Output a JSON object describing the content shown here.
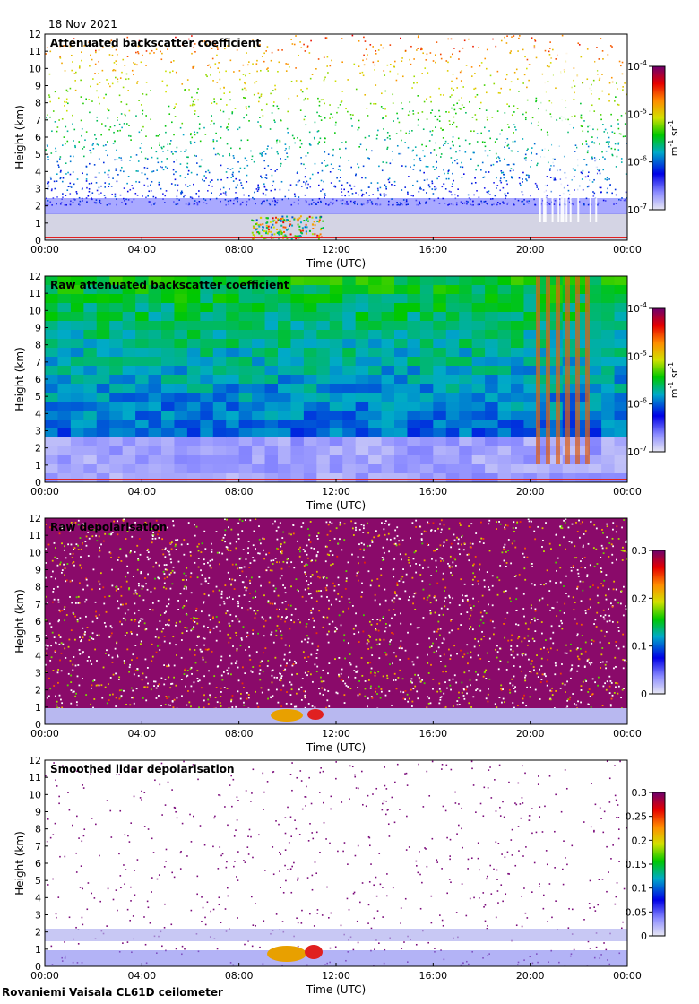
{
  "date": "18 Nov 2021",
  "station": "Rovaniemi Vaisala CL61D ceilometer",
  "chart_data": [
    {
      "type": "heatmap",
      "title": "Attenuated backscatter coefficient",
      "xlabel": "Time (UTC)",
      "ylabel": "Height (km)",
      "xticks": [
        "00:00",
        "04:00",
        "08:00",
        "12:00",
        "16:00",
        "20:00",
        "00:00"
      ],
      "yticks": [
        "0",
        "1",
        "2",
        "3",
        "4",
        "5",
        "6",
        "7",
        "8",
        "9",
        "10",
        "11",
        "12"
      ],
      "ylim": [
        0,
        12
      ],
      "colorbar": {
        "scale": "log",
        "ticks": [
          "10",
          "10",
          "10",
          "10"
        ],
        "exponents": [
          "-7",
          "-6",
          "-5",
          "-4"
        ],
        "unit_base": [
          "m",
          "sr"
        ],
        "unit_exp": [
          "-1",
          "-1"
        ]
      }
    },
    {
      "type": "heatmap",
      "title": "Raw attenuated backscatter coefficient",
      "xlabel": "Time (UTC)",
      "ylabel": "Height (km)",
      "xticks": [
        "00:00",
        "04:00",
        "08:00",
        "12:00",
        "16:00",
        "20:00",
        "00:00"
      ],
      "yticks": [
        "0",
        "1",
        "2",
        "3",
        "4",
        "5",
        "6",
        "7",
        "8",
        "9",
        "10",
        "11",
        "12"
      ],
      "ylim": [
        0,
        12
      ],
      "colorbar": {
        "scale": "log",
        "ticks": [
          "10",
          "10",
          "10",
          "10"
        ],
        "exponents": [
          "-7",
          "-6",
          "-5",
          "-4"
        ],
        "unit_base": [
          "m",
          "sr"
        ],
        "unit_exp": [
          "-1",
          "-1"
        ]
      }
    },
    {
      "type": "heatmap",
      "title": "Raw depolarisation",
      "xlabel": "Time (UTC)",
      "ylabel": "Height (km)",
      "xticks": [
        "00:00",
        "04:00",
        "08:00",
        "12:00",
        "16:00",
        "20:00",
        "00:00"
      ],
      "yticks": [
        "0",
        "1",
        "2",
        "3",
        "4",
        "5",
        "6",
        "7",
        "8",
        "9",
        "10",
        "11",
        "12"
      ],
      "ylim": [
        0,
        12
      ],
      "colorbar": {
        "scale": "linear",
        "ticks": [
          "0",
          "0.1",
          "0.2",
          "0.3"
        ]
      }
    },
    {
      "type": "heatmap",
      "title": "Smoothed lidar depolarisation",
      "xlabel": "Time (UTC)",
      "ylabel": "Height (km)",
      "xticks": [
        "00:00",
        "04:00",
        "08:00",
        "12:00",
        "16:00",
        "20:00",
        "00:00"
      ],
      "yticks": [
        "0",
        "1",
        "2",
        "3",
        "4",
        "5",
        "6",
        "7",
        "8",
        "9",
        "10",
        "11",
        "12"
      ],
      "ylim": [
        0,
        12
      ],
      "colorbar": {
        "scale": "linear",
        "ticks": [
          "0",
          "0.05",
          "0.1",
          "0.15",
          "0.2",
          "0.25",
          "0.3"
        ]
      }
    }
  ]
}
